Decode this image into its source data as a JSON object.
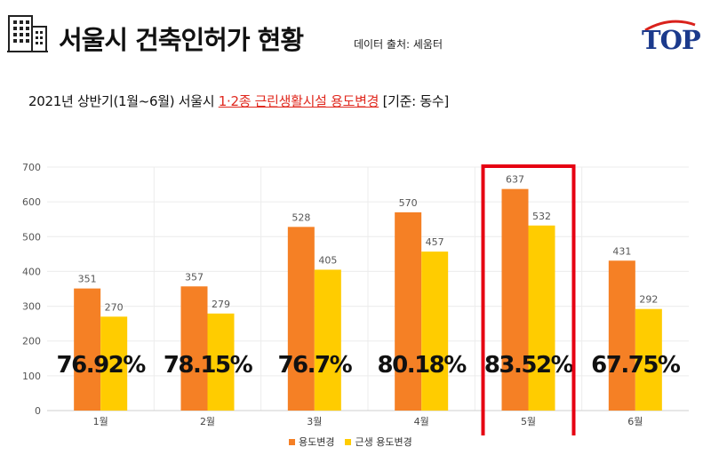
{
  "header": {
    "title": "서울시 건축인허가 현황",
    "source": "데이터 출처: 세움터",
    "logo_text": "TOP"
  },
  "subtitle": {
    "prefix": "2021년 상반기(1월~6월) 서울시 ",
    "highlight": "1·2종 근린생활시설 용도변경",
    "suffix": " [기준: 동수]"
  },
  "chart_data": {
    "type": "bar",
    "categories": [
      "1월",
      "2월",
      "3월",
      "4월",
      "5월",
      "6월"
    ],
    "series": [
      {
        "name": "용도변경",
        "values": [
          351,
          357,
          528,
          570,
          637,
          431
        ],
        "color": "#f58025"
      },
      {
        "name": "근생 용도변경",
        "values": [
          270,
          279,
          405,
          457,
          532,
          292
        ],
        "color": "#ffcc00"
      }
    ],
    "ratios": [
      "76.92%",
      "78.15%",
      "76.7%",
      "80.18%",
      "83.52%",
      "67.75%"
    ],
    "ylim": [
      0,
      700
    ],
    "yticks": [
      "0",
      "100",
      "200",
      "300",
      "400",
      "500",
      "600",
      "700"
    ],
    "grid": true,
    "legend_position": "bottom",
    "highlighted_category": "5월",
    "highlight_color": "#e60012"
  }
}
